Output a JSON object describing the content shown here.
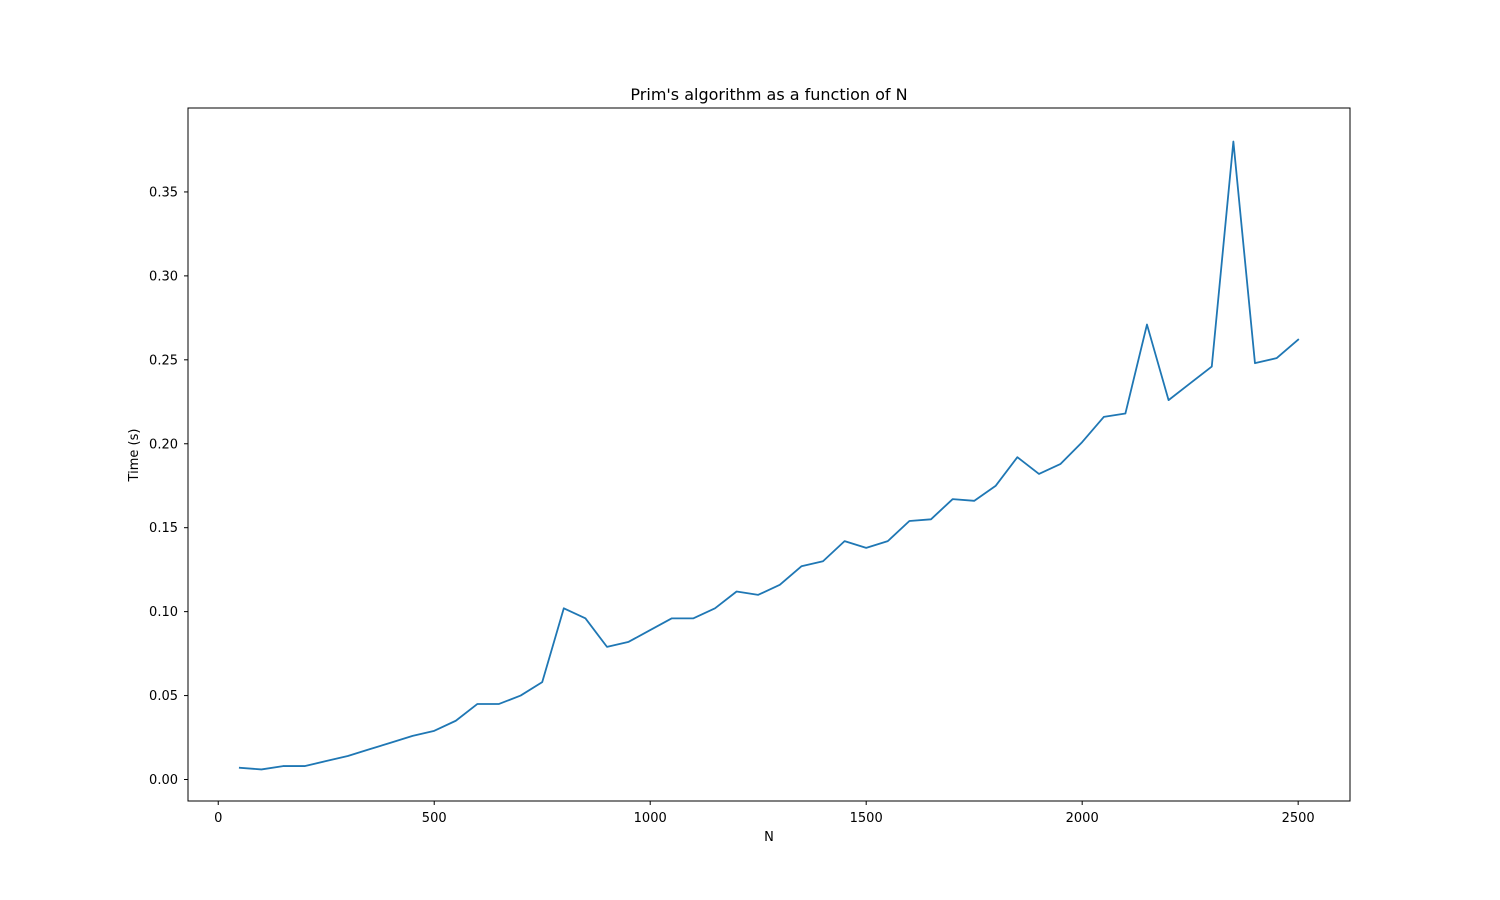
{
  "chart_data": {
    "type": "line",
    "title": "Prim's algorithm as a function of N",
    "xlabel": "N",
    "ylabel": "Time (s)",
    "xlim": [
      -70,
      2620
    ],
    "ylim": [
      -0.0128,
      0.4
    ],
    "xticks": [
      0,
      500,
      1000,
      1500,
      2000,
      2500
    ],
    "xtick_labels": [
      "0",
      "500",
      "1000",
      "1500",
      "2000",
      "2500"
    ],
    "yticks": [
      0.0,
      0.05,
      0.1,
      0.15,
      0.2,
      0.25,
      0.3,
      0.35
    ],
    "ytick_labels": [
      "0.00",
      "0.05",
      "0.10",
      "0.15",
      "0.20",
      "0.25",
      "0.30",
      "0.35"
    ],
    "grid": false,
    "series": [
      {
        "color": "#1f77b4",
        "x": [
          50,
          100,
          150,
          200,
          250,
          300,
          350,
          400,
          450,
          500,
          550,
          600,
          650,
          700,
          750,
          800,
          850,
          900,
          950,
          1000,
          1050,
          1100,
          1150,
          1200,
          1250,
          1300,
          1350,
          1400,
          1450,
          1500,
          1550,
          1600,
          1650,
          1700,
          1750,
          1800,
          1850,
          1900,
          1950,
          2000,
          2050,
          2100,
          2150,
          2200,
          2250,
          2300,
          2350,
          2400,
          2450,
          2500
        ],
        "y": [
          0.007,
          0.006,
          0.008,
          0.008,
          0.011,
          0.014,
          0.018,
          0.022,
          0.026,
          0.029,
          0.035,
          0.045,
          0.045,
          0.05,
          0.058,
          0.102,
          0.096,
          0.079,
          0.082,
          0.089,
          0.096,
          0.096,
          0.102,
          0.112,
          0.11,
          0.116,
          0.127,
          0.13,
          0.142,
          0.138,
          0.142,
          0.154,
          0.155,
          0.167,
          0.166,
          0.175,
          0.192,
          0.182,
          0.188,
          0.201,
          0.216,
          0.218,
          0.271,
          0.226,
          0.236,
          0.246,
          0.38,
          0.248,
          0.251,
          0.262
        ]
      }
    ]
  }
}
